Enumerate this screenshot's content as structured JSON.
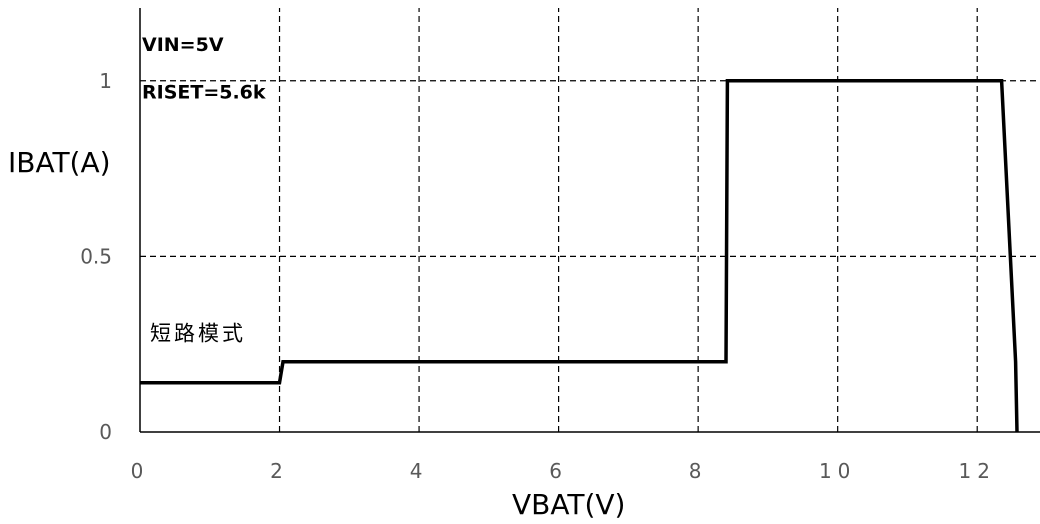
{
  "chart_data": {
    "type": "line",
    "xlabel": "VBAT(V)",
    "ylabel": "IBAT(A)",
    "xlim": [
      0,
      12.9
    ],
    "ylim": [
      0,
      1.23
    ],
    "x_ticks": [
      0,
      2,
      4,
      6,
      8,
      10,
      12
    ],
    "y_ticks": [
      0,
      0.5,
      1
    ],
    "x_tick_labels": [
      "0",
      "2",
      "4",
      "6",
      "8",
      "10",
      "12"
    ],
    "y_tick_labels": [
      "0",
      "0.5",
      "1"
    ],
    "grid": true,
    "series": [
      {
        "color": "#000000",
        "points": [
          [
            0,
            0.14
          ],
          [
            2.0,
            0.14
          ],
          [
            2.05,
            0.2
          ],
          [
            8.4,
            0.2
          ],
          [
            8.42,
            1.0
          ],
          [
            12.35,
            1.0
          ],
          [
            12.55,
            0.2
          ],
          [
            12.57,
            0.0
          ]
        ]
      }
    ],
    "annotations": [
      {
        "text": "VIN=5V",
        "x": 0.05,
        "y": 0.9
      },
      {
        "text": "RISET=5.6k",
        "x": 0.05,
        "y": 0.79
      },
      {
        "text": "短路模式",
        "x": 0.15,
        "y": 0.23
      }
    ]
  }
}
